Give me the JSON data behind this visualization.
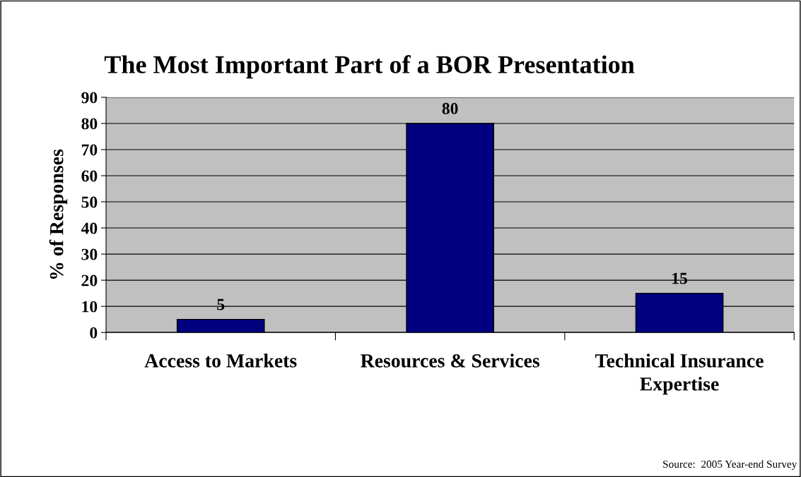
{
  "chart_data": {
    "type": "bar",
    "title": "The Most Important Part of a BOR Presentation",
    "ylabel": "% of Responses",
    "categories": [
      "Access to Markets",
      "Resources & Services",
      "Technical Insurance Expertise"
    ],
    "values": [
      5,
      80,
      15
    ],
    "color": "#000080",
    "ylim": [
      0,
      90
    ],
    "yticks": [
      0,
      10,
      20,
      30,
      40,
      50,
      60,
      70,
      80,
      90
    ],
    "grid": "y",
    "legend": false,
    "data_labels": true,
    "annotations": [
      "Source:  2005 Year-end Survey"
    ]
  }
}
